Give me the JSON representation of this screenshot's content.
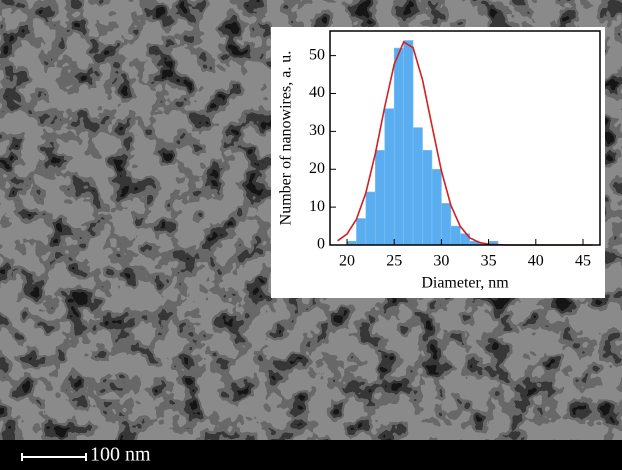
{
  "chart_data": {
    "type": "histogram",
    "x_label": "Diameter, nm",
    "y_label": "Number of nanowires, a. u.",
    "bins": [
      20,
      21,
      22,
      23,
      24,
      25,
      26,
      27,
      28,
      29,
      30,
      31,
      32,
      33,
      34,
      35,
      36
    ],
    "values": [
      1,
      7,
      14,
      25,
      36,
      52,
      54,
      31,
      25,
      20,
      11,
      5,
      3,
      1,
      0.5,
      1
    ],
    "color": "#5aaef0",
    "fit": {
      "color": "#d42020",
      "x": [
        19,
        20,
        21,
        22,
        23,
        24,
        25,
        26,
        27,
        28,
        29,
        30,
        31,
        32,
        33,
        34,
        35,
        36,
        37,
        38,
        39,
        40,
        41,
        42,
        43,
        44,
        45,
        46
      ],
      "values": [
        1.1,
        2.9,
        6.8,
        13.8,
        24.1,
        36.5,
        47.7,
        53.6,
        52.1,
        43.6,
        31.5,
        19.6,
        10.5,
        4.9,
        1.9,
        0.7,
        0.2,
        0.1,
        0,
        0,
        0,
        0,
        0,
        0,
        0,
        0,
        0,
        0
      ]
    },
    "xlim": [
      18.2,
      46.8
    ],
    "xticks": [
      20,
      25,
      30,
      35,
      40,
      45
    ],
    "ylim": [
      0,
      56.5
    ],
    "yticks": [
      0,
      10,
      20,
      30,
      40,
      50
    ]
  },
  "scale_bar_label": "100 nm"
}
